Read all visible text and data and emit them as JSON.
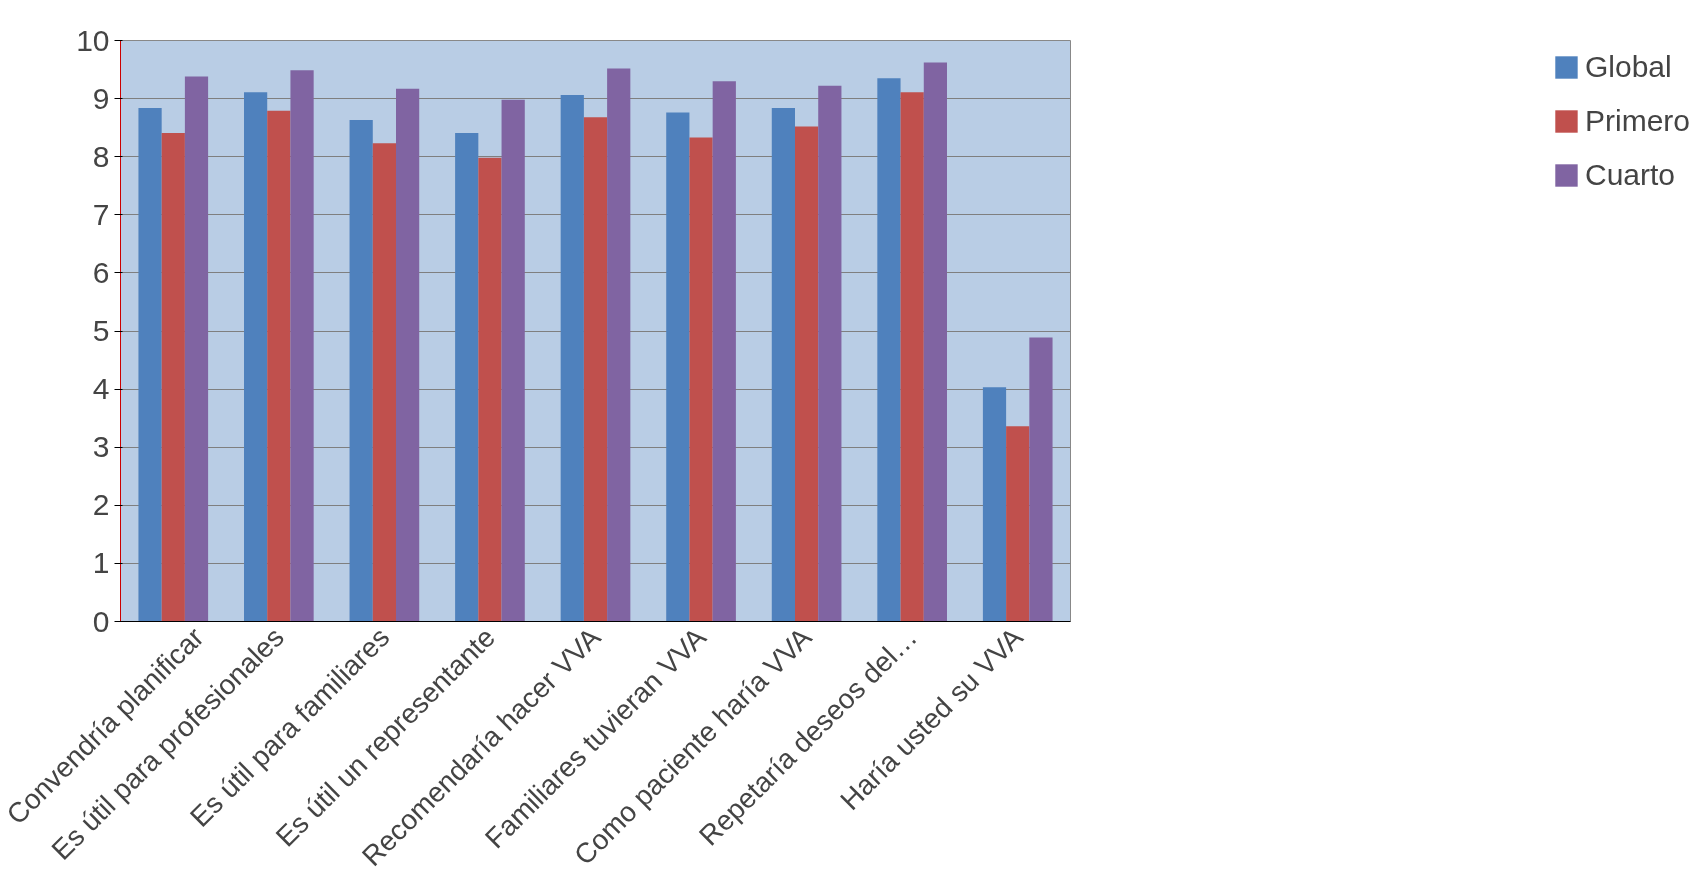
{
  "chart_data": {
    "type": "bar",
    "categories": [
      "Convendría planificar",
      "Es útil para profesionales",
      "Es útil para familiares",
      "Es útil un representante",
      "Recomendaría hacer VVA",
      "Familiares tuvieran VVA",
      "Como paciente haría VVA",
      "Repetaría deseos del…",
      "Haría usted su VVA"
    ],
    "series": [
      {
        "name": "Global",
        "color": "#4f81bd",
        "values": [
          8.84,
          9.11,
          8.63,
          8.41,
          9.06,
          8.76,
          8.84,
          9.35,
          4.03
        ]
      },
      {
        "name": "Primero",
        "color": "#c0504d",
        "values": [
          8.41,
          8.79,
          8.23,
          7.98,
          8.68,
          8.33,
          8.52,
          9.11,
          3.36
        ]
      },
      {
        "name": "Cuarto",
        "color": "#8064a2",
        "values": [
          9.38,
          9.49,
          9.17,
          8.98,
          9.52,
          9.3,
          9.22,
          9.62,
          4.89
        ]
      }
    ],
    "ylim": [
      0,
      10
    ],
    "yticks": [
      0,
      1,
      2,
      3,
      4,
      5,
      6,
      7,
      8,
      9,
      10
    ],
    "grid": "y",
    "legend": "right"
  }
}
